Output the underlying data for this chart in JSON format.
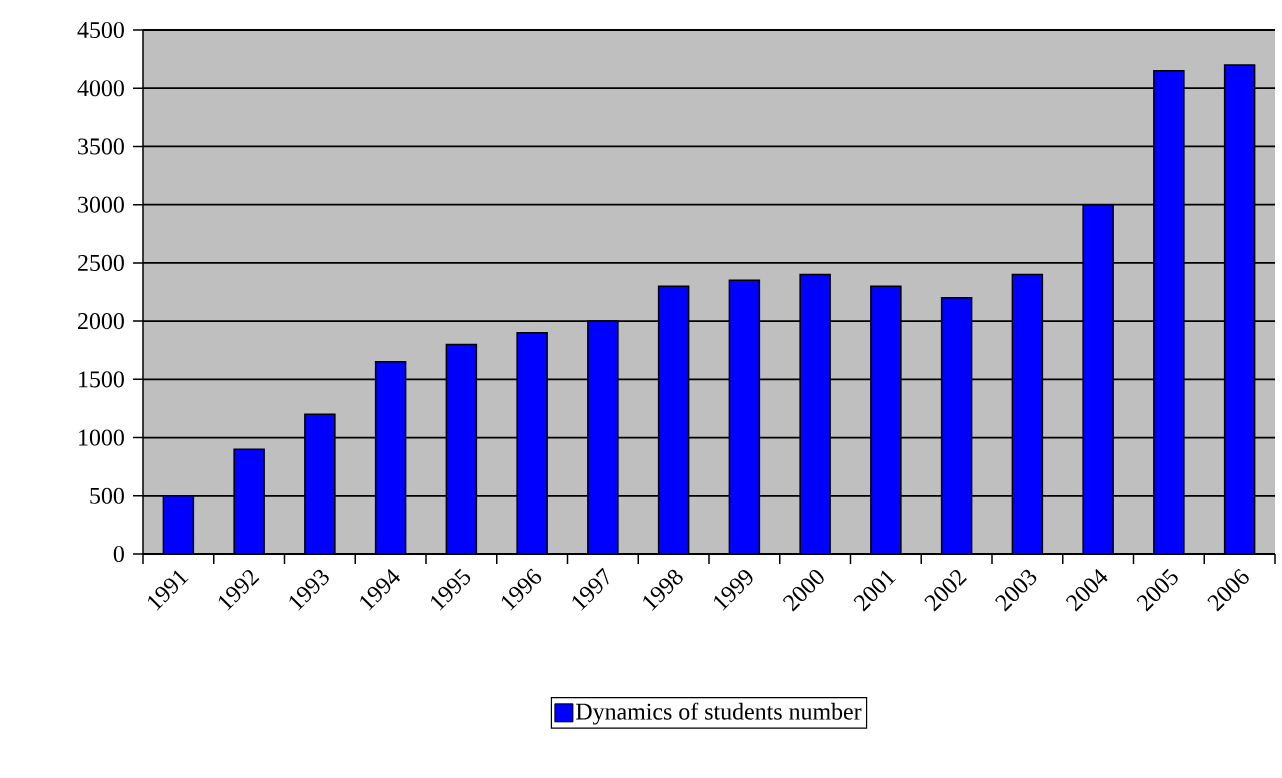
{
  "chart_data": {
    "type": "bar",
    "categories": [
      "1991",
      "1992",
      "1993",
      "1994",
      "1995",
      "1996",
      "1997",
      "1998",
      "1999",
      "2000",
      "2001",
      "2002",
      "2003",
      "2004",
      "2005",
      "2006"
    ],
    "series": [
      {
        "name": "Dynamics of students number",
        "color": "#0000ff",
        "values": [
          500,
          900,
          1200,
          1650,
          1800,
          1900,
          2000,
          2300,
          2350,
          2400,
          2300,
          2200,
          2400,
          3000,
          4150,
          4200
        ]
      }
    ],
    "ylim": [
      0,
      4500
    ],
    "yticks": [
      0,
      500,
      1000,
      1500,
      2000,
      2500,
      3000,
      3500,
      4000,
      4500
    ],
    "grid": "y",
    "legend": "bottom"
  }
}
